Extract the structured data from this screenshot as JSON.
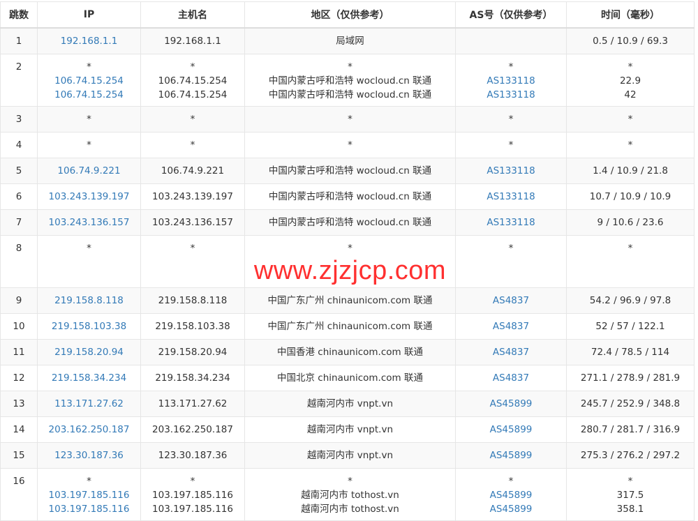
{
  "headers": {
    "hop": "跳数",
    "ip": "IP",
    "host": "主机名",
    "region": "地区（仅供参考）",
    "as": "AS号（仅供参考）",
    "time": "时间（毫秒）"
  },
  "rows": [
    {
      "hop": "1",
      "ip": [
        "192.168.1.1"
      ],
      "host": [
        "192.168.1.1"
      ],
      "region": [
        "局域网"
      ],
      "as": [
        ""
      ],
      "time": [
        "0.5 / 10.9 / 69.3"
      ]
    },
    {
      "hop": "2",
      "ip": [
        "*",
        "106.74.15.254",
        "106.74.15.254"
      ],
      "host": [
        "*",
        "106.74.15.254",
        "106.74.15.254"
      ],
      "region": [
        "*",
        "中国内蒙古呼和浩特 wocloud.cn 联通",
        "中国内蒙古呼和浩特 wocloud.cn 联通"
      ],
      "as": [
        "*",
        "AS133118",
        "AS133118"
      ],
      "time": [
        "*",
        "22.9",
        "42"
      ]
    },
    {
      "hop": "3",
      "ip": [
        "*"
      ],
      "host": [
        "*"
      ],
      "region": [
        "*"
      ],
      "as": [
        "*"
      ],
      "time": [
        "*"
      ]
    },
    {
      "hop": "4",
      "ip": [
        "*"
      ],
      "host": [
        "*"
      ],
      "region": [
        "*"
      ],
      "as": [
        "*"
      ],
      "time": [
        "*"
      ]
    },
    {
      "hop": "5",
      "ip": [
        "106.74.9.221"
      ],
      "host": [
        "106.74.9.221"
      ],
      "region": [
        "中国内蒙古呼和浩特 wocloud.cn 联通"
      ],
      "as": [
        "AS133118"
      ],
      "time": [
        "1.4 / 10.9 / 21.8"
      ]
    },
    {
      "hop": "6",
      "ip": [
        "103.243.139.197"
      ],
      "host": [
        "103.243.139.197"
      ],
      "region": [
        "中国内蒙古呼和浩特 wocloud.cn 联通"
      ],
      "as": [
        "AS133118"
      ],
      "time": [
        "10.7 / 10.9 / 10.9"
      ]
    },
    {
      "hop": "7",
      "ip": [
        "103.243.136.157"
      ],
      "host": [
        "103.243.136.157"
      ],
      "region": [
        "中国内蒙古呼和浩特 wocloud.cn 联通"
      ],
      "as": [
        "AS133118"
      ],
      "time": [
        "9 / 10.6 / 23.6"
      ]
    },
    {
      "hop": "8",
      "ip": [
        "*"
      ],
      "host": [
        "*"
      ],
      "region": [
        "*"
      ],
      "as": [
        "*"
      ],
      "time": [
        "*"
      ]
    },
    {
      "hop": "9",
      "ip": [
        "219.158.8.118"
      ],
      "host": [
        "219.158.8.118"
      ],
      "region": [
        "中国广东广州 chinaunicom.com 联通"
      ],
      "as": [
        "AS4837"
      ],
      "time": [
        "54.2 / 96.9 / 97.8"
      ]
    },
    {
      "hop": "10",
      "ip": [
        "219.158.103.38"
      ],
      "host": [
        "219.158.103.38"
      ],
      "region": [
        "中国广东广州 chinaunicom.com 联通"
      ],
      "as": [
        "AS4837"
      ],
      "time": [
        "52 / 57 / 122.1"
      ]
    },
    {
      "hop": "11",
      "ip": [
        "219.158.20.94"
      ],
      "host": [
        "219.158.20.94"
      ],
      "region": [
        "中国香港 chinaunicom.com 联通"
      ],
      "as": [
        "AS4837"
      ],
      "time": [
        "72.4 / 78.5 / 114"
      ]
    },
    {
      "hop": "12",
      "ip": [
        "219.158.34.234"
      ],
      "host": [
        "219.158.34.234"
      ],
      "region": [
        "中国北京 chinaunicom.com 联通"
      ],
      "as": [
        "AS4837"
      ],
      "time": [
        "271.1 / 278.9 / 281.9"
      ]
    },
    {
      "hop": "13",
      "ip": [
        "113.171.27.62"
      ],
      "host": [
        "113.171.27.62"
      ],
      "region": [
        "越南河内市 vnpt.vn"
      ],
      "as": [
        "AS45899"
      ],
      "time": [
        "245.7 / 252.9 / 348.8"
      ]
    },
    {
      "hop": "14",
      "ip": [
        "203.162.250.187"
      ],
      "host": [
        "203.162.250.187"
      ],
      "region": [
        "越南河内市 vnpt.vn"
      ],
      "as": [
        "AS45899"
      ],
      "time": [
        "280.7 / 281.7 / 316.9"
      ]
    },
    {
      "hop": "15",
      "ip": [
        "123.30.187.36"
      ],
      "host": [
        "123.30.187.36"
      ],
      "region": [
        "越南河内市 vnpt.vn"
      ],
      "as": [
        "AS45899"
      ],
      "time": [
        "275.3 / 276.2 / 297.2"
      ]
    },
    {
      "hop": "16",
      "ip": [
        "*",
        "103.197.185.116",
        "103.197.185.116"
      ],
      "host": [
        "*",
        "103.197.185.116",
        "103.197.185.116"
      ],
      "region": [
        "*",
        "越南河内市 tothost.vn",
        "越南河内市 tothost.vn"
      ],
      "as": [
        "*",
        "AS45899",
        "AS45899"
      ],
      "time": [
        "*",
        "317.5",
        "358.1"
      ]
    }
  ],
  "watermark": "www.zjzjcp.com",
  "colors": {
    "link": "#337ab7",
    "watermark": "#ff3030",
    "stripe": "#f9f9f9"
  }
}
